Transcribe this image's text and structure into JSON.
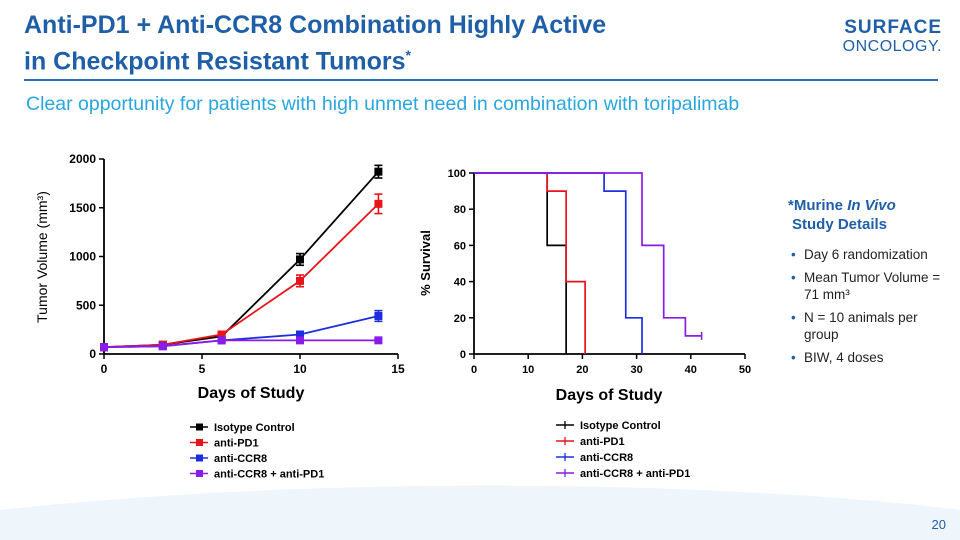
{
  "header": {
    "title_line1": "Anti-PD1 + Anti-CCR8 Combination Highly Active",
    "title_line2": "in Checkpoint Resistant Tumors",
    "title_mark": "*",
    "logo_line1": "SURFACE",
    "logo_line2": "ONCOLOGY.",
    "subtitle": "Clear opportunity for patients with high unmet need in combination with toripalimab"
  },
  "notes": {
    "heading_prefix": "*Murine ",
    "heading_italic": "In Vivo",
    "heading_line2": "Study Details",
    "items": [
      "Day 6 randomization",
      "Mean Tumor Volume = 71 mm³",
      "N = 10 animals per group",
      "BIW, 4 doses"
    ]
  },
  "page_number": "20",
  "chart_data": [
    {
      "type": "line",
      "title": "",
      "xlabel": "Days of Study",
      "ylabel": "Tumor Volume (mm³)",
      "xlim": [
        0,
        15
      ],
      "ylim": [
        0,
        2000
      ],
      "xticks": [
        0,
        5,
        10,
        15
      ],
      "yticks": [
        0,
        500,
        1000,
        1500,
        2000
      ],
      "xtick_labels": [
        "0",
        "5",
        "10",
        "15"
      ],
      "ytick_labels": [
        "0",
        "500",
        "1000",
        "1500",
        "2000"
      ],
      "legend_position": "bottom",
      "series": [
        {
          "name": "Isotype Control",
          "color": "#000000",
          "x": [
            0,
            3,
            6,
            10,
            14
          ],
          "y": [
            70,
            95,
            180,
            970,
            1870
          ],
          "err": [
            5,
            15,
            25,
            60,
            65
          ]
        },
        {
          "name": "anti-PD1",
          "color": "#e8141c",
          "x": [
            0,
            3,
            6,
            10,
            14
          ],
          "y": [
            70,
            95,
            200,
            750,
            1540
          ],
          "err": [
            5,
            15,
            25,
            60,
            100
          ]
        },
        {
          "name": "anti-CCR8",
          "color": "#1c2ee0",
          "x": [
            0,
            3,
            6,
            10,
            14
          ],
          "y": [
            70,
            80,
            140,
            200,
            390
          ],
          "err": [
            5,
            10,
            20,
            25,
            55
          ]
        },
        {
          "name": "anti-CCR8 + anti-PD1",
          "color": "#8a1ce8",
          "x": [
            0,
            3,
            6,
            10,
            14
          ],
          "y": [
            70,
            80,
            140,
            140,
            140
          ],
          "err": [
            5,
            10,
            15,
            15,
            15
          ]
        }
      ]
    },
    {
      "type": "line",
      "title": "",
      "xlabel": "Days of Study",
      "ylabel": "% Survival",
      "xlim": [
        0,
        50
      ],
      "ylim": [
        0,
        100
      ],
      "xticks": [
        0,
        10,
        20,
        30,
        40,
        50
      ],
      "yticks": [
        0,
        20,
        40,
        60,
        80,
        100
      ],
      "xtick_labels": [
        "0",
        "10",
        "20",
        "30",
        "40",
        "50"
      ],
      "ytick_labels": [
        "0",
        "20",
        "40",
        "60",
        "80",
        "100"
      ],
      "legend_position": "bottom",
      "step": true,
      "series": [
        {
          "name": "Isotype Control",
          "color": "#000000",
          "x": [
            0,
            13.5,
            17
          ],
          "y": [
            100,
            60,
            0
          ],
          "end": 17
        },
        {
          "name": "anti-PD1",
          "color": "#e8141c",
          "x": [
            0,
            13.5,
            17,
            20.5
          ],
          "y": [
            100,
            90,
            40,
            0
          ],
          "end": 20.5
        },
        {
          "name": "anti-CCR8",
          "color": "#1c2ee0",
          "x": [
            0,
            20,
            24,
            28,
            31
          ],
          "y": [
            100,
            100,
            90,
            20,
            0
          ],
          "end": 31
        },
        {
          "name": "anti-CCR8 + anti-PD1",
          "color": "#8a1ce8",
          "x": [
            0,
            31,
            35,
            39,
            42
          ],
          "y": [
            100,
            60,
            20,
            10,
            10
          ],
          "end": 42
        }
      ]
    }
  ]
}
